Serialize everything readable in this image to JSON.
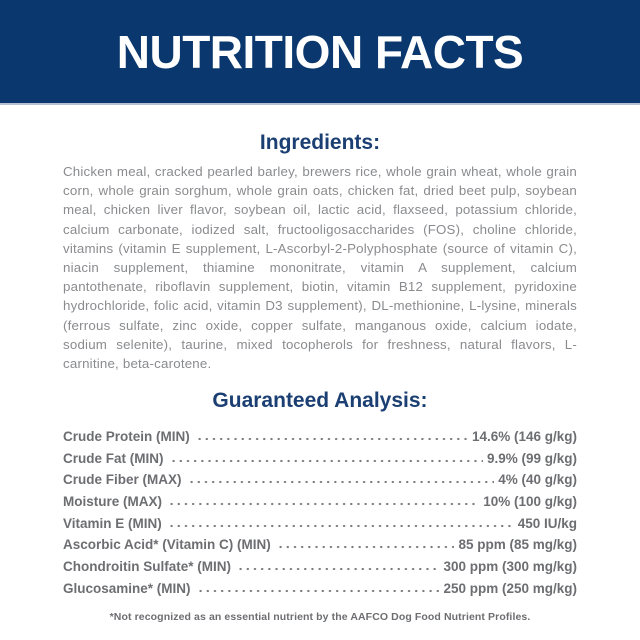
{
  "colors": {
    "banner_bg": "#0a386e",
    "banner_text": "#ffffff",
    "banner_edge": "#b7c1d5",
    "heading_navy": "#1b3f72",
    "body_gray": "#8a8b8e",
    "table_gray": "#6d6e71",
    "page_bg": "#ffffff"
  },
  "header": {
    "title": "NUTRITION FACTS"
  },
  "ingredients": {
    "heading": "Ingredients:",
    "text": "Chicken meal, cracked pearled barley, brewers rice, whole grain wheat, whole grain corn, whole grain sorghum, whole grain oats, chicken fat, dried beet pulp, soybean meal, chicken liver flavor, soybean oil, lactic acid, flaxseed, potassium chloride, calcium carbonate, iodized salt, fructooligosaccharides (FOS), choline chloride, vitamins (vitamin E supplement, L-Ascorbyl-2-Polyphosphate (source of vitamin C), niacin supplement, thiamine mononitrate, vitamin A supplement, calcium pantothenate, riboflavin supplement, biotin, vitamin B12 supplement, pyridoxine hydrochloride, folic acid, vitamin D3 supplement), DL-methionine, L-lysine, minerals (ferrous sulfate, zinc oxide, copper sulfate, manganous oxide, calcium iodate, sodium selenite), taurine, mixed tocopherols for freshness, natural flavors, L-carnitine, beta-carotene."
  },
  "guaranteed_analysis": {
    "heading": "Guaranteed Analysis:",
    "rows": [
      {
        "label": "Crude Protein (MIN)",
        "value": "14.6% (146 g/kg)"
      },
      {
        "label": "Crude Fat (MIN)",
        "value": "9.9% (99 g/kg)"
      },
      {
        "label": "Crude Fiber (MAX)",
        "value": "4% (40 g/kg)"
      },
      {
        "label": "Moisture (MAX)",
        "value": "10% (100 g/kg)"
      },
      {
        "label": "Vitamin E (MIN)",
        "value": "450 IU/kg"
      },
      {
        "label": "Ascorbic Acid* (Vitamin C) (MIN)",
        "value": "85 ppm (85 mg/kg)"
      },
      {
        "label": "Chondroitin Sulfate* (MIN)",
        "value": "300 ppm (300 mg/kg)"
      },
      {
        "label": "Glucosamine* (MIN)",
        "value": "250 ppm (250 mg/kg)"
      }
    ]
  },
  "footnote": "*Not recognized as an essential nutrient by the AAFCO Dog Food Nutrient Profiles."
}
